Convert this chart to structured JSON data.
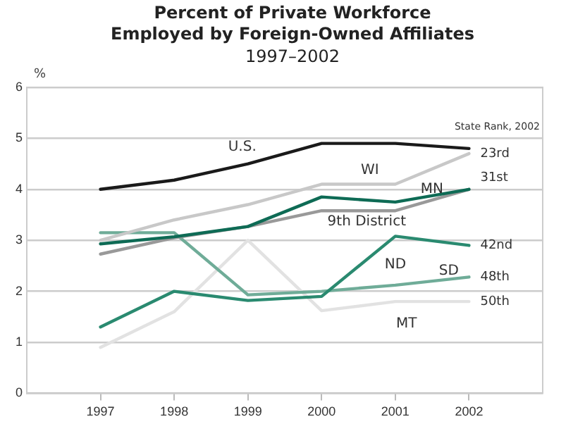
{
  "chart_data": {
    "type": "line",
    "title": "Percent of Private Workforce\nEmployed by Foreign-Owned Affiliates",
    "subtitle": "1997–2002",
    "ylabel": "%",
    "x": [
      1997,
      1998,
      1999,
      2000,
      2001,
      2002
    ],
    "xlim": [
      1996,
      2003
    ],
    "xticks": [
      1997,
      1998,
      1999,
      2000,
      2001,
      2002
    ],
    "ylim": [
      0,
      6
    ],
    "yticks": [
      0,
      1,
      2,
      3,
      4,
      5,
      6
    ],
    "grid": "y",
    "legend": false,
    "marker": "none",
    "line_style": "solid",
    "series": [
      {
        "name": "U.S.",
        "color": "#1a1a1a",
        "values": [
          4.0,
          4.18,
          4.5,
          4.9,
          4.9,
          4.8
        ]
      },
      {
        "name": "WI",
        "color": "#c8c8c8",
        "values": [
          3.0,
          3.4,
          3.7,
          4.1,
          4.1,
          4.7
        ]
      },
      {
        "name": "MN",
        "color": "#0e6b55",
        "values": [
          2.93,
          3.07,
          3.27,
          3.85,
          3.75,
          4.0
        ]
      },
      {
        "name": "9th District",
        "color": "#999999",
        "values": [
          2.73,
          3.05,
          3.27,
          3.58,
          3.58,
          4.0
        ]
      },
      {
        "name": "ND",
        "color": "#2a8a70",
        "values": [
          1.3,
          2.0,
          1.82,
          1.9,
          3.08,
          2.9
        ]
      },
      {
        "name": "SD",
        "color": "#6fac98",
        "values": [
          3.15,
          3.15,
          1.93,
          2.0,
          2.12,
          2.28
        ]
      },
      {
        "name": "MT",
        "color": "#e2e2e2",
        "values": [
          0.9,
          1.6,
          3.0,
          1.62,
          1.8,
          1.8
        ]
      }
    ],
    "annotations": [
      "State Rank, 2002",
      "23rd",
      "31st",
      "42nd",
      "48th",
      "50th"
    ]
  }
}
